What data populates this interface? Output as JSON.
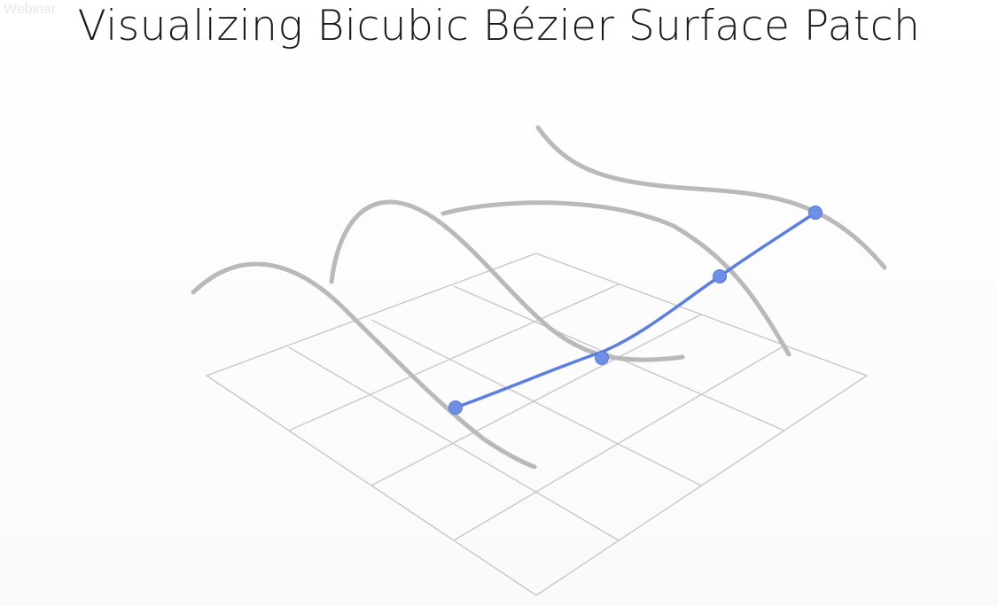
{
  "title": "Visualizing Bicubic Bézier Surface Patch",
  "watermark": "Webinar",
  "colors": {
    "grid": "#c8c8c8",
    "row_curves": "#b9b9b9",
    "highlight_curve": "#5b7fe0",
    "control_points": "#6f8fe6",
    "title_text": "#1a1a1a"
  }
}
